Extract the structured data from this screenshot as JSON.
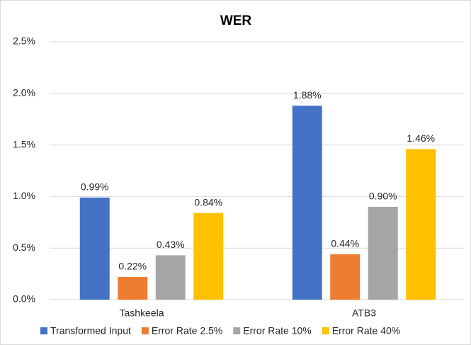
{
  "chart_data": {
    "type": "bar",
    "title": "WER",
    "categories": [
      "Tashkeela",
      "ATB3"
    ],
    "series": [
      {
        "name": "Transformed Input",
        "color": "#4472c4",
        "values": [
          0.99,
          1.88
        ],
        "value_labels": [
          "0.99%",
          "1.88%"
        ]
      },
      {
        "name": "Error Rate 2.5%",
        "color": "#ed7d31",
        "values": [
          0.22,
          0.44
        ],
        "value_labels": [
          "0.22%",
          "0.44%"
        ]
      },
      {
        "name": "Error Rate 10%",
        "color": "#a5a5a5",
        "values": [
          0.43,
          0.9
        ],
        "value_labels": [
          "0.43%",
          "0.90%"
        ]
      },
      {
        "name": "Error Rate 40%",
        "color": "#ffc000",
        "values": [
          0.84,
          1.46
        ],
        "value_labels": [
          "0.84%",
          "1.46%"
        ]
      }
    ],
    "ylim": [
      0,
      2.5
    ],
    "yticks": [
      {
        "value": 0,
        "label": "0.0%"
      },
      {
        "value": 0.5,
        "label": "0.5%"
      },
      {
        "value": 1.0,
        "label": "1.0%"
      },
      {
        "value": 1.5,
        "label": "1.5%"
      },
      {
        "value": 2.0,
        "label": "2.0%"
      },
      {
        "value": 2.5,
        "label": "2.5%"
      }
    ],
    "grid": true,
    "legend": "bottom"
  }
}
